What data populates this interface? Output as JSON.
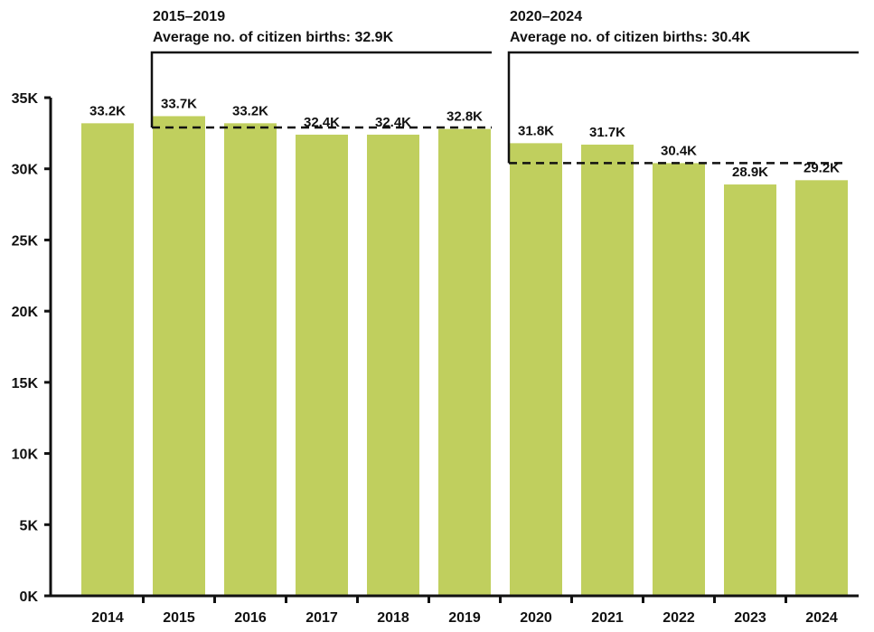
{
  "chart_data": {
    "type": "bar",
    "title": "",
    "xlabel": "",
    "ylabel": "",
    "categories": [
      "2014",
      "2015",
      "2016",
      "2017",
      "2018",
      "2019",
      "2020",
      "2021",
      "2022",
      "2023",
      "2024"
    ],
    "values": [
      33.2,
      33.7,
      33.2,
      32.4,
      32.4,
      32.8,
      31.8,
      31.7,
      30.4,
      28.9,
      29.2
    ],
    "data_labels": [
      "33.2K",
      "33.7K",
      "33.2K",
      "32.4K",
      "32.4K",
      "32.8K",
      "31.8K",
      "31.7K",
      "30.4K",
      "28.9K",
      "29.2K"
    ],
    "value_unit": "thousands",
    "ylim": [
      0,
      35
    ],
    "y_ticks": [
      0,
      5,
      10,
      15,
      20,
      25,
      30,
      35
    ],
    "y_tick_labels": [
      "0K",
      "5K",
      "10K",
      "15K",
      "20K",
      "25K",
      "30K",
      "35K"
    ],
    "grid": false,
    "bar_color": "#c0cf5e",
    "annotations": [
      {
        "period": "2015–2019",
        "text": "Average no. of citizen births: 32.9K",
        "average": 32.9,
        "start_category": "2015",
        "end_category": "2019"
      },
      {
        "period": "2020–2024",
        "text": "Average no. of citizen births: 30.4K",
        "average": 30.4,
        "start_category": "2020",
        "end_category": "2024"
      }
    ]
  }
}
